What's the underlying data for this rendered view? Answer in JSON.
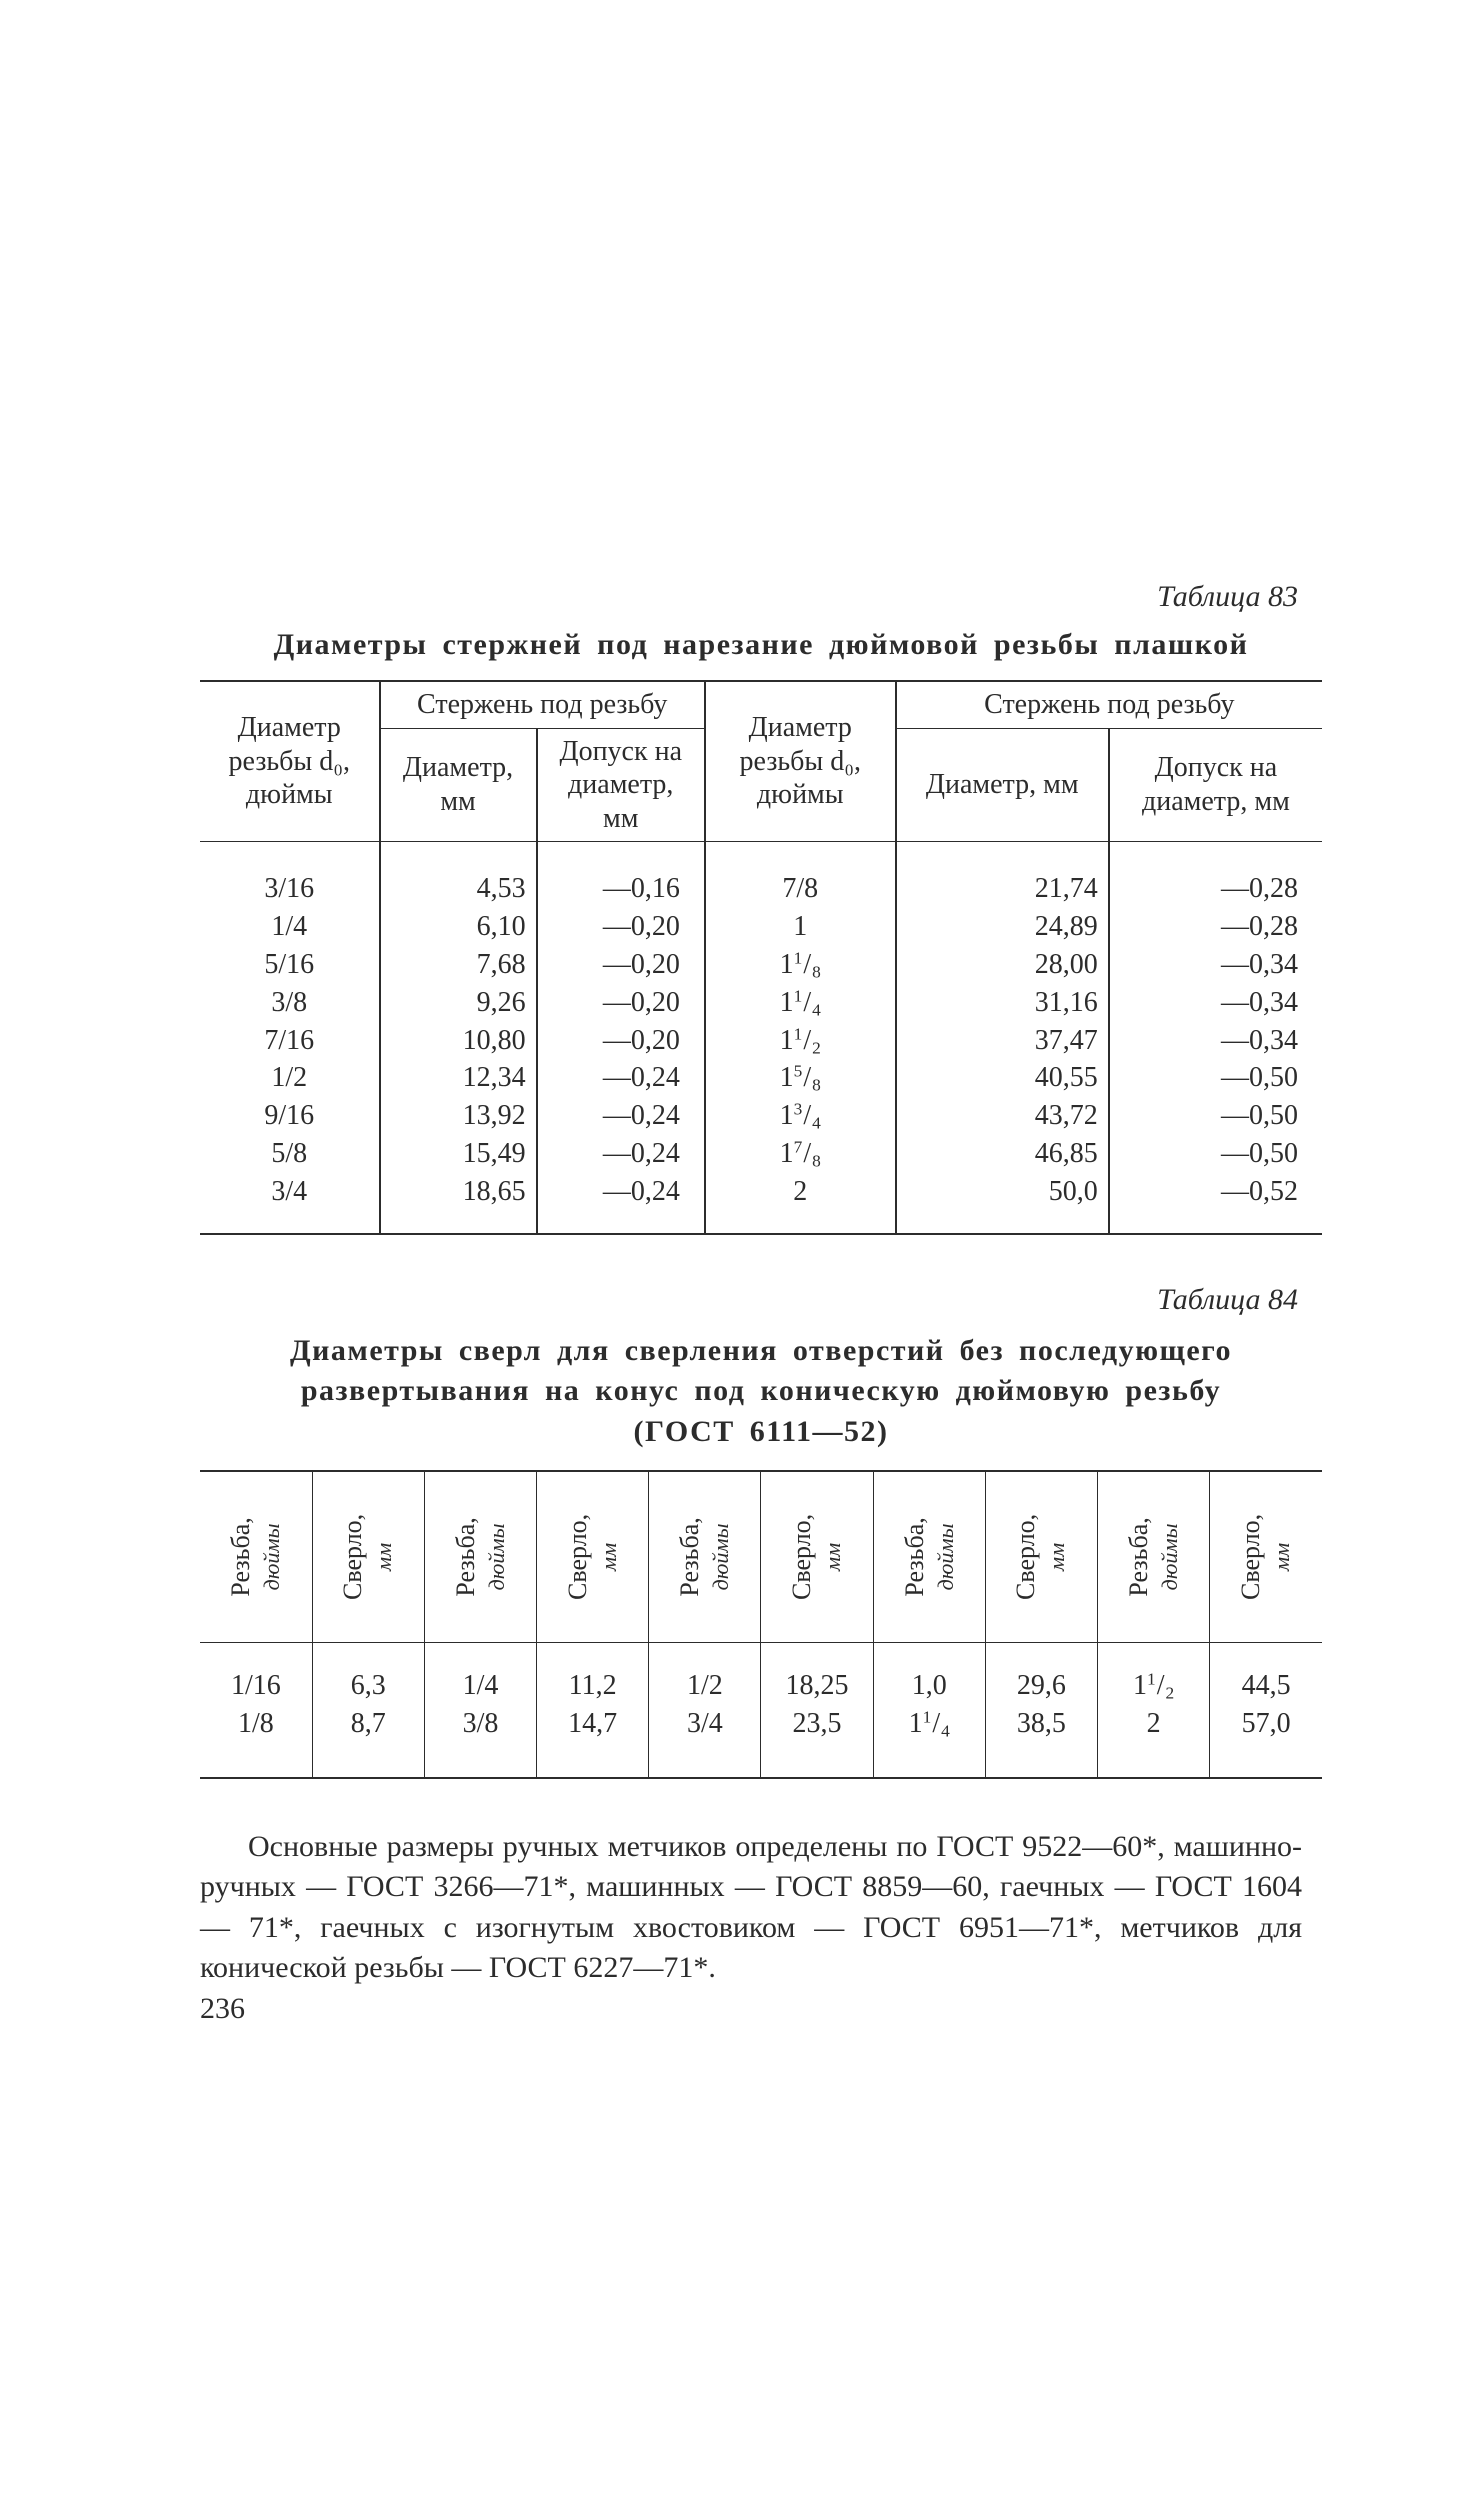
{
  "page_number": "236",
  "table83": {
    "number_label": "Таблица 83",
    "title": "Диаметры стержней под нарезание дюймовой резьбы плашкой",
    "head": {
      "col1": "Диаметр резьбы d₀, дюймы",
      "group1": "Стержень под резьбу",
      "col2": "Диаметр, мм",
      "col3": "Допуск на диаметр, мм",
      "col4": "Диаметр резьбы d₀, дюймы",
      "group2": "Стержень под резьбу",
      "col5": "Диаметр, мм",
      "col6": "Допуск на диаметр, мм"
    },
    "left": {
      "thread": [
        "3/16",
        "1/4",
        "5/16",
        "3/8",
        "7/16",
        "1/2",
        "9/16",
        "5/8",
        "3/4"
      ],
      "dia": [
        "4,53",
        "6,10",
        "7,68",
        "9,26",
        "10,80",
        "12,34",
        "13,92",
        "15,49",
        "18,65"
      ],
      "tol": [
        "—0,16",
        "—0,20",
        "—0,20",
        "—0,20",
        "—0,20",
        "—0,24",
        "—0,24",
        "—0,24",
        "—0,24"
      ]
    },
    "right": {
      "thread_html": "7/8<br>1<br>",
      "thread_mixed": [
        {
          "int": "1",
          "num": "1",
          "den": "8"
        },
        {
          "int": "1",
          "num": "1",
          "den": "4"
        },
        {
          "int": "1",
          "num": "1",
          "den": "2"
        },
        {
          "int": "1",
          "num": "5",
          "den": "8"
        },
        {
          "int": "1",
          "num": "3",
          "den": "4"
        },
        {
          "int": "1",
          "num": "7",
          "den": "8"
        }
      ],
      "thread_tail": "2",
      "dia": [
        "21,74",
        "24,89",
        "28,00",
        "31,16",
        "37,47",
        "40,55",
        "43,72",
        "46,85",
        "50,0"
      ],
      "tol": [
        "—0,28",
        "—0,28",
        "—0,34",
        "—0,34",
        "—0,34",
        "—0,50",
        "—0,50",
        "—0,50",
        "—0,52"
      ]
    }
  },
  "table84": {
    "number_label": "Таблица 84",
    "title_html": "Диаметры сверл для сверления отверстий без последующего развертывания на конус под коническую дюймовую резьбу<br>(ГОСТ 6111—52)",
    "head_thread": "Резьба, дюймы",
    "head_drill": "Сверло, мм",
    "cols": [
      {
        "thread": [
          "1/16",
          "1/8"
        ],
        "drill": [
          "6,3",
          "8,7"
        ]
      },
      {
        "thread": [
          "1/4",
          "3/8"
        ],
        "drill": [
          "11,2",
          "14,7"
        ]
      },
      {
        "thread": [
          "1/2",
          "3/4"
        ],
        "drill": [
          "18,25",
          "23,5"
        ]
      },
      {
        "thread_mixed": [
          {
            "txt": "1,0"
          },
          {
            "int": "1",
            "num": "1",
            "den": "4"
          }
        ],
        "drill": [
          "29,6",
          "38,5"
        ]
      },
      {
        "thread_mixed": [
          {
            "int": "1",
            "num": "1",
            "den": "2"
          },
          {
            "txt": "2"
          }
        ],
        "drill": [
          "44,5",
          "57,0"
        ]
      }
    ]
  },
  "paragraph": "Основные размеры ручных метчиков определены по ГОСТ 9522—60*, машинно-ручных — ГОСТ 3266—71*, машинных — ГОСТ 8859—60, гаечных — ГОСТ 1604 — 71*, гаечных с изогнутым хвостовиком — ГОСТ 6951—71*, метчиков для конической резьбы — ГОСТ 6227—71*."
}
